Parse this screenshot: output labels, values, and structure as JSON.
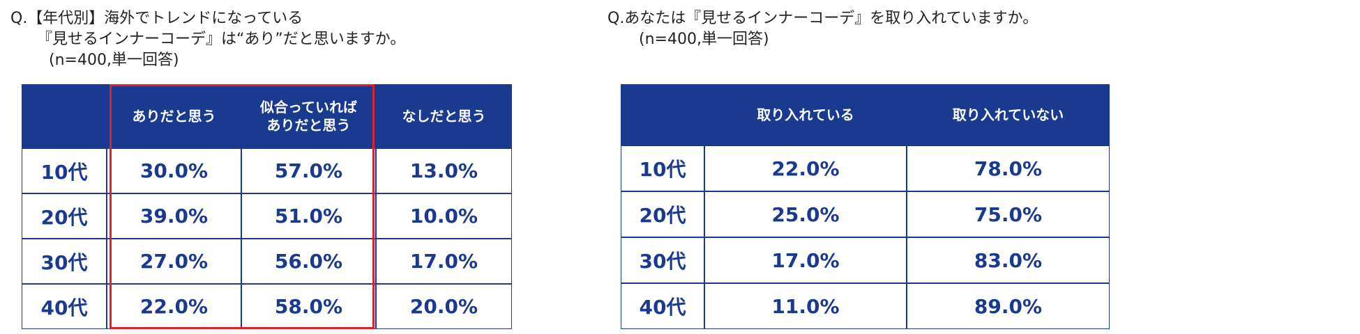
{
  "left": {
    "title": [
      "Q.【年代別】海外でトレンドになっている",
      "『見せるインナーコーデ』は“あり”だと思いますか。",
      "(n=400,単一回答)"
    ],
    "table": {
      "columns": [
        [
          "ありだと思う"
        ],
        [
          "似合っていれば",
          "ありだと思う"
        ],
        [
          "なしだと思う"
        ]
      ],
      "rows": [
        {
          "label": "10代",
          "cells": [
            "30.0%",
            "57.0%",
            "13.0%"
          ]
        },
        {
          "label": "20代",
          "cells": [
            "39.0%",
            "51.0%",
            "10.0%"
          ]
        },
        {
          "label": "30代",
          "cells": [
            "27.0%",
            "56.0%",
            "17.0%"
          ]
        },
        {
          "label": "40代",
          "cells": [
            "22.0%",
            "58.0%",
            "20.0%"
          ]
        }
      ]
    }
  },
  "right": {
    "title": [
      "Q.あなたは『見せるインナーコーデ』を取り入れていますか。",
      "(n=400,単一回答)"
    ],
    "table": {
      "columns": [
        [
          "取り入れている"
        ],
        [
          "取り入れていない"
        ]
      ],
      "rows": [
        {
          "label": "10代",
          "cells": [
            "22.0%",
            "78.0%"
          ]
        },
        {
          "label": "20代",
          "cells": [
            "25.0%",
            "75.0%"
          ]
        },
        {
          "label": "30代",
          "cells": [
            "17.0%",
            "83.0%"
          ]
        },
        {
          "label": "40代",
          "cells": [
            "11.0%",
            "89.0%"
          ]
        }
      ]
    }
  }
}
